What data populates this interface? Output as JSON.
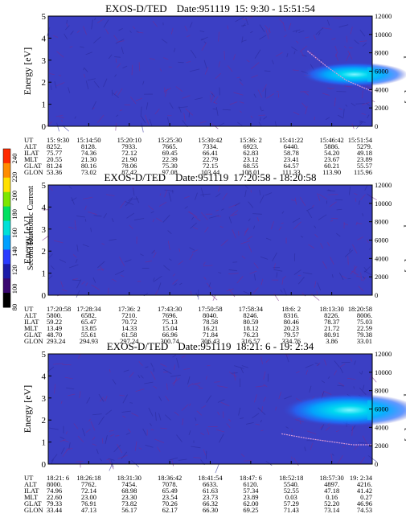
{
  "color_scale": {
    "label": "Second Harmonic Current",
    "ticks": [
      "240",
      "220",
      "200",
      "180",
      "160",
      "140",
      "120",
      "100",
      "80"
    ],
    "colors": [
      "#ff2a00",
      "#ff8c00",
      "#ffe000",
      "#7de600",
      "#00e060",
      "#00e0d8",
      "#00a0ff",
      "#2a3cff",
      "#1c1ca8",
      "#3a0870",
      "#000000"
    ]
  },
  "chart_data": [
    {
      "type": "heatmap",
      "title": "EXOS-D/TED",
      "date_label": "Date:951119",
      "time_range": "15: 9:30 - 15:51:54",
      "ylabel": "Energy [eV]",
      "y2label": "Temperature [K]",
      "yticks": [
        "0",
        "1",
        "2",
        "3",
        "4",
        "5"
      ],
      "y2ticks": [
        "0",
        "2000",
        "4000",
        "6000",
        "8000",
        "10000",
        "12000"
      ],
      "ylim": [
        0,
        5
      ],
      "y2lim": [
        0,
        12000
      ],
      "background_color": "#3b3fc4",
      "blob": {
        "x_start": 0.78,
        "x_end": 1.0,
        "center_ev": 2.35,
        "half_height_ev": 0.55
      },
      "temperature_line": {
        "x_start": 0.8,
        "x_end": 1.0,
        "points_k": [
          [
            0.8,
            8200
          ],
          [
            0.86,
            6500
          ],
          [
            0.92,
            5000
          ],
          [
            1.0,
            3800
          ]
        ]
      },
      "param_rows": [
        {
          "label": "UT",
          "values": [
            "15: 9:30",
            "15:14:50",
            "15:20:10",
            "15:25:30",
            "15:30:42",
            "15:36: 2",
            "15:41:22",
            "15:46:42",
            "15:51:54"
          ]
        },
        {
          "label": "ALT",
          "values": [
            "8252.",
            "8128.",
            "7933.",
            "7665.",
            "7334.",
            "6923.",
            "6440.",
            "5886.",
            "5279."
          ]
        },
        {
          "label": "ILAT",
          "values": [
            "75.77",
            "74.36",
            "72.12",
            "69.45",
            "66.41",
            "62.83",
            "58.78",
            "54.20",
            "49.18"
          ]
        },
        {
          "label": "MLT",
          "values": [
            "20.55",
            "21.30",
            "21.90",
            "22.39",
            "22.79",
            "23.12",
            "23.41",
            "23.67",
            "23.89"
          ]
        },
        {
          "label": "GLAT",
          "values": [
            "81.24",
            "80.16",
            "78.06",
            "75.30",
            "72.15",
            "68.55",
            "64.57",
            "60.21",
            "55.57"
          ]
        },
        {
          "label": "GLON",
          "values": [
            "53.36",
            "73.02",
            "87.42",
            "97.08",
            "103.44",
            "108.01",
            "111.33",
            "113.90",
            "115.96"
          ]
        }
      ]
    },
    {
      "type": "heatmap",
      "title": "EXOS-D/TED",
      "date_label": "Date:951119",
      "time_range": "17:20:58 - 18:20:58",
      "ylabel": "Energy [eV]",
      "y2label": "Temperature [K]",
      "yticks": [
        "0",
        "1",
        "2",
        "3",
        "4",
        "5"
      ],
      "y2ticks": [
        "0",
        "2000",
        "4000",
        "6000",
        "8000",
        "10000",
        "12000"
      ],
      "ylim": [
        0,
        5
      ],
      "y2lim": [
        0,
        12000
      ],
      "background_color": "#3b3fc4",
      "param_rows": [
        {
          "label": "UT",
          "values": [
            "17:20:58",
            "17:28:34",
            "17:36: 2",
            "17:43:30",
            "17:50:58",
            "17:58:34",
            "18:6: 2",
            "18:13:30",
            "18:20:58"
          ]
        },
        {
          "label": "ALT",
          "values": [
            "5800.",
            "6582.",
            "7210.",
            "7696.",
            "8040.",
            "8246.",
            "8316.",
            "8226.",
            "8006."
          ]
        },
        {
          "label": "ILAT",
          "values": [
            "59.22",
            "65.47",
            "70.72",
            "75.13",
            "78.58",
            "80.59",
            "80.46",
            "78.37",
            "75.03"
          ]
        },
        {
          "label": "MLT",
          "values": [
            "13.49",
            "13.85",
            "14.33",
            "15.04",
            "16.21",
            "18.12",
            "20.23",
            "21.72",
            "22.59"
          ]
        },
        {
          "label": "GLAT",
          "values": [
            "48.70",
            "55.61",
            "61.58",
            "66.96",
            "71.84",
            "76.23",
            "79.57",
            "80.91",
            "79.38"
          ]
        },
        {
          "label": "GLON",
          "values": [
            "293.24",
            "294.93",
            "297.24",
            "300.74",
            "306.43",
            "316.57",
            "334.76",
            "3.86",
            "33.01"
          ]
        }
      ]
    },
    {
      "type": "heatmap",
      "title": "EXOS-D/TED",
      "date_label": "Date:951119",
      "time_range": "18:21: 6 - 19: 2:34",
      "ylabel": "Energy [eV]",
      "y2label": "Temperature [K]",
      "yticks": [
        "0",
        "1",
        "2",
        "3",
        "4",
        "5"
      ],
      "y2ticks": [
        "0",
        "2000",
        "4000",
        "6000",
        "8000",
        "10000",
        "12000"
      ],
      "ylim": [
        0,
        5
      ],
      "y2lim": [
        0,
        12000
      ],
      "background_color": "#3b3fc4",
      "blob": {
        "x_start": 0.72,
        "x_end": 1.0,
        "center_ev": 2.45,
        "half_height_ev": 0.75
      },
      "temperature_line": {
        "x_start": 0.72,
        "x_end": 1.0,
        "points_k": [
          [
            0.72,
            3300
          ],
          [
            0.8,
            2800
          ],
          [
            0.88,
            2400
          ],
          [
            0.94,
            2100
          ],
          [
            1.0,
            2100
          ]
        ]
      },
      "param_rows": [
        {
          "label": "UT",
          "values": [
            "18:21: 6",
            "18:26:18",
            "18:31:30",
            "18:36:42",
            "18:41:54",
            "18:47: 6",
            "18:52:18",
            "18:57:30",
            "19: 2:34"
          ]
        },
        {
          "label": "ALT",
          "values": [
            "8000.",
            "7762.",
            "7454.",
            "7078.",
            "6633.",
            "6120.",
            "5540.",
            "4897.",
            "4216."
          ]
        },
        {
          "label": "ILAT",
          "values": [
            "74.96",
            "72.14",
            "68.98",
            "65.49",
            "61.63",
            "57.34",
            "52.55",
            "47.18",
            "41.42"
          ]
        },
        {
          "label": "MLT",
          "values": [
            "22.60",
            "23.00",
            "23.30",
            "23.54",
            "23.73",
            "23.89",
            "0.03",
            "0.16",
            "0.27"
          ]
        },
        {
          "label": "GLAT",
          "values": [
            "79.33",
            "76.91",
            "73.82",
            "70.26",
            "66.32",
            "62.00",
            "57.29",
            "52.20",
            "46.96"
          ]
        },
        {
          "label": "GLON",
          "values": [
            "33.44",
            "47.13",
            "56.17",
            "62.17",
            "66.30",
            "69.25",
            "71.43",
            "73.14",
            "74.53"
          ]
        }
      ]
    }
  ]
}
